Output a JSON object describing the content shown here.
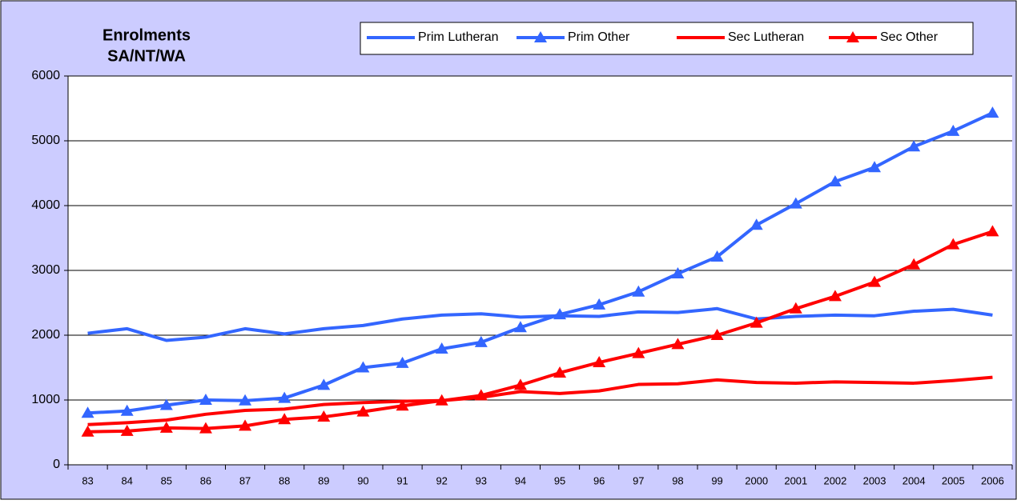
{
  "chart_data": {
    "type": "line",
    "title": "Enrolments",
    "subtitle": "SA/NT/WA",
    "categories": [
      "83",
      "84",
      "85",
      "86",
      "87",
      "88",
      "89",
      "90",
      "91",
      "92",
      "93",
      "94",
      "95",
      "96",
      "97",
      "98",
      "99",
      "2000",
      "2001",
      "2002",
      "2003",
      "2004",
      "2005",
      "2006"
    ],
    "series": [
      {
        "name": "Prim Lutheran",
        "color": "#3366ff",
        "marker": "none",
        "values": [
          2030,
          2100,
          1920,
          1970,
          2100,
          2020,
          2100,
          2150,
          2250,
          2310,
          2330,
          2280,
          2300,
          2290,
          2360,
          2350,
          2410,
          2250,
          2290,
          2310,
          2300,
          2370,
          2400,
          2310
        ]
      },
      {
        "name": "Prim Other",
        "color": "#3366ff",
        "marker": "triangle",
        "values": [
          800,
          830,
          920,
          1000,
          990,
          1030,
          1230,
          1500,
          1570,
          1790,
          1890,
          2120,
          2320,
          2470,
          2670,
          2950,
          3210,
          3700,
          4030,
          4370,
          4590,
          4910,
          5150,
          5430
        ]
      },
      {
        "name": "Sec Lutheran",
        "color": "#ff0000",
        "marker": "none",
        "values": [
          620,
          650,
          690,
          780,
          840,
          860,
          930,
          960,
          980,
          990,
          1040,
          1130,
          1100,
          1140,
          1240,
          1250,
          1310,
          1270,
          1260,
          1280,
          1270,
          1260,
          1300,
          1350
        ]
      },
      {
        "name": "Sec Other",
        "color": "#ff0000",
        "marker": "triangle",
        "values": [
          510,
          520,
          570,
          560,
          600,
          700,
          740,
          820,
          910,
          990,
          1070,
          1230,
          1420,
          1580,
          1720,
          1860,
          2000,
          2190,
          2410,
          2600,
          2820,
          3090,
          3400,
          3600
        ]
      }
    ],
    "ylim": [
      0,
      6000
    ],
    "yticks": [
      0,
      1000,
      2000,
      3000,
      4000,
      5000,
      6000
    ],
    "grid": true,
    "legend": "top"
  }
}
